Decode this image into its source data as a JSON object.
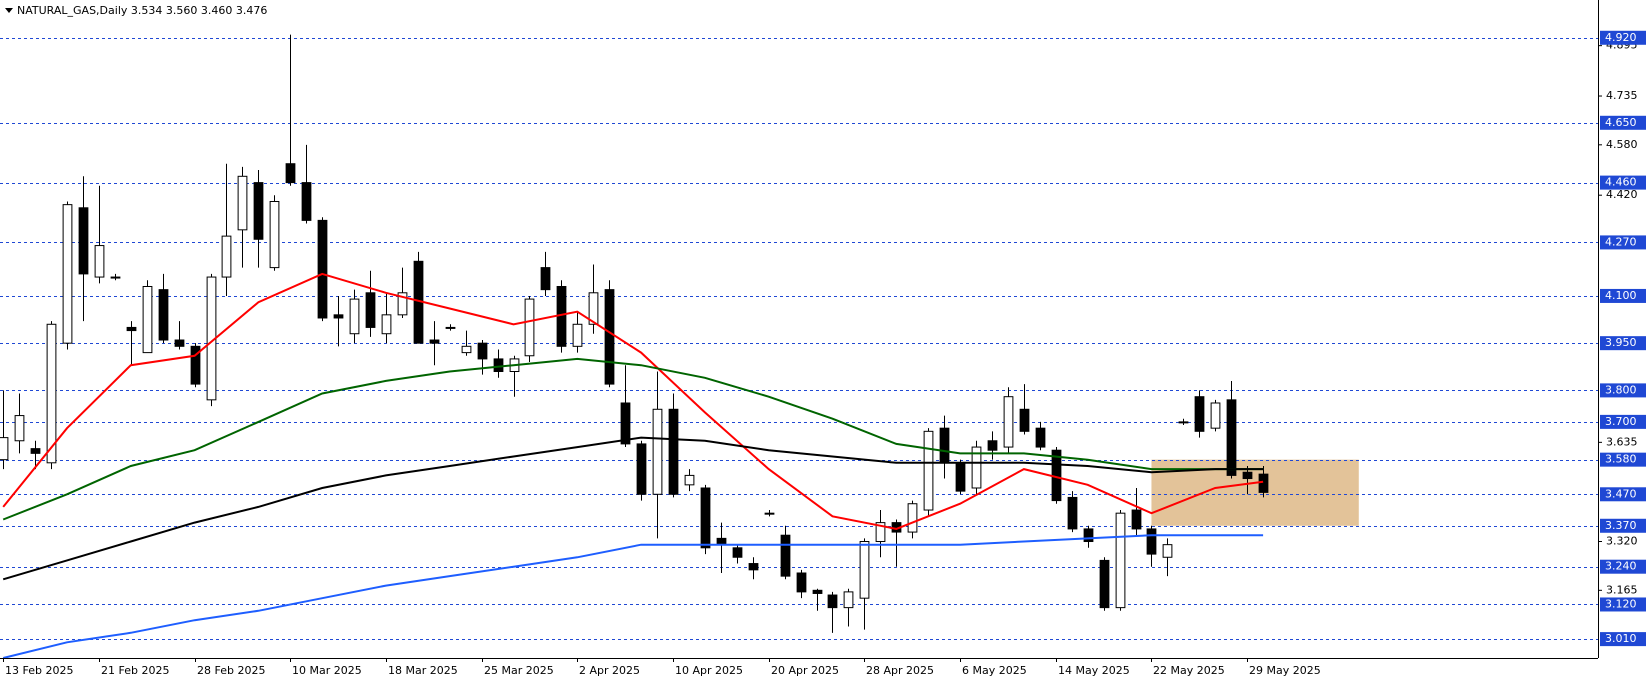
{
  "chart_data": {
    "type": "candlestick",
    "title": "NATURAL_GAS,Daily  3.534 3.560 3.460 3.476",
    "categories": [
      "13 Feb 2025",
      null,
      null,
      null,
      null,
      null,
      "21 Feb 2025",
      null,
      null,
      null,
      null,
      null,
      "28 Feb 2025",
      null,
      null,
      null,
      null,
      null,
      "10 Mar 2025",
      null,
      null,
      null,
      null,
      null,
      "18 Mar 2025",
      null,
      null,
      null,
      null,
      null,
      "25 Mar 2025",
      null,
      null,
      null,
      null,
      null,
      "2 Apr 2025",
      null,
      null,
      null,
      null,
      null,
      "10 Apr 2025",
      null,
      null,
      null,
      null,
      null,
      "20 Apr 2025",
      null,
      null,
      null,
      null,
      null,
      "28 Apr 2025",
      null,
      null,
      null,
      null,
      null,
      "6 May 2025",
      null,
      null,
      null,
      null,
      null,
      "14 May 2025",
      null,
      null,
      null,
      null,
      null,
      "22 May 2025",
      null,
      null,
      null,
      null,
      null,
      "29 May 2025",
      null
    ],
    "open": [
      3.58,
      3.64,
      3.615,
      3.57,
      3.95,
      4.38,
      4.16,
      4.16,
      4.0,
      3.92,
      4.12,
      3.96,
      3.94,
      3.77,
      4.16,
      4.31,
      4.46,
      4.19,
      4.52,
      4.46,
      4.34,
      4.04,
      3.98,
      4.11,
      3.98,
      4.04,
      4.21,
      3.96,
      4.0,
      3.92,
      3.95,
      3.9,
      3.86,
      3.91,
      4.19,
      4.13,
      3.94,
      4.01,
      4.12,
      3.76,
      3.63,
      3.47,
      3.74,
      3.5,
      3.49,
      3.33,
      3.3,
      3.25,
      3.41,
      3.34,
      3.22,
      3.165,
      3.15,
      3.11,
      3.14,
      3.32,
      3.38,
      3.35,
      3.42,
      3.68,
      3.57,
      3.49,
      3.64,
      3.62,
      3.74,
      3.68,
      3.61,
      3.46,
      3.36,
      3.26,
      3.11,
      3.42,
      3.36,
      3.27,
      3.7,
      3.78,
      3.68,
      3.77,
      3.54,
      3.534
    ],
    "high": [
      3.8,
      3.79,
      3.64,
      4.02,
      4.4,
      4.48,
      4.45,
      4.17,
      4.02,
      4.15,
      4.17,
      4.02,
      3.95,
      4.17,
      4.52,
      4.51,
      4.5,
      4.42,
      4.93,
      4.58,
      4.35,
      4.1,
      4.12,
      4.18,
      4.11,
      4.19,
      4.24,
      4.02,
      4.01,
      3.99,
      3.96,
      3.93,
      3.91,
      4.1,
      4.24,
      4.15,
      4.05,
      4.2,
      4.15,
      3.88,
      3.64,
      3.86,
      3.79,
      3.55,
      3.5,
      3.38,
      3.31,
      3.27,
      3.42,
      3.37,
      3.23,
      3.17,
      3.16,
      3.17,
      3.33,
      3.42,
      3.39,
      3.45,
      3.68,
      3.72,
      3.58,
      3.64,
      3.67,
      3.81,
      3.82,
      3.7,
      3.62,
      3.48,
      3.37,
      3.27,
      3.42,
      3.49,
      3.37,
      3.33,
      3.71,
      3.8,
      3.77,
      3.83,
      3.56,
      3.56
    ],
    "low": [
      3.55,
      3.6,
      3.55,
      3.55,
      3.93,
      4.02,
      4.14,
      4.15,
      3.88,
      3.92,
      3.95,
      3.93,
      3.81,
      3.75,
      4.1,
      4.19,
      4.19,
      4.18,
      4.45,
      4.33,
      4.02,
      3.94,
      3.95,
      3.97,
      3.95,
      4.03,
      3.95,
      3.88,
      3.99,
      3.91,
      3.85,
      3.84,
      3.78,
      3.89,
      4.1,
      3.92,
      3.92,
      3.98,
      3.81,
      3.62,
      3.45,
      3.33,
      3.46,
      3.48,
      3.28,
      3.22,
      3.25,
      3.2,
      3.4,
      3.2,
      3.14,
      3.1,
      3.03,
      3.05,
      3.04,
      3.27,
      3.24,
      3.33,
      3.4,
      3.52,
      3.47,
      3.47,
      3.58,
      3.6,
      3.66,
      3.61,
      3.44,
      3.35,
      3.3,
      3.1,
      3.1,
      3.34,
      3.24,
      3.21,
      3.69,
      3.65,
      3.67,
      3.52,
      3.47,
      3.46
    ],
    "close": [
      3.65,
      3.72,
      3.6,
      4.01,
      4.39,
      4.17,
      4.26,
      4.16,
      3.99,
      4.13,
      3.96,
      3.94,
      3.82,
      4.16,
      4.29,
      4.48,
      4.28,
      4.4,
      4.46,
      4.34,
      4.03,
      4.03,
      4.09,
      4.0,
      4.04,
      4.11,
      3.95,
      3.95,
      4.0,
      3.94,
      3.9,
      3.86,
      3.9,
      4.09,
      4.12,
      3.94,
      4.01,
      4.11,
      3.82,
      3.63,
      3.47,
      3.74,
      3.47,
      3.53,
      3.3,
      3.31,
      3.27,
      3.23,
      3.41,
      3.21,
      3.16,
      3.155,
      3.11,
      3.16,
      3.32,
      3.38,
      3.35,
      3.44,
      3.67,
      3.57,
      3.48,
      3.62,
      3.61,
      3.78,
      3.67,
      3.62,
      3.45,
      3.36,
      3.32,
      3.11,
      3.41,
      3.36,
      3.28,
      3.31,
      3.7,
      3.67,
      3.76,
      3.53,
      3.52,
      3.476
    ],
    "series": [
      {
        "color": "#ff0000",
        "x": [
          0,
          4,
          8,
          12,
          16,
          20,
          24,
          28,
          32,
          36,
          40,
          44,
          48,
          52,
          56,
          60,
          64,
          68,
          72,
          76,
          79
        ],
        "values": [
          3.43,
          3.68,
          3.88,
          3.91,
          4.08,
          4.17,
          4.11,
          4.06,
          4.01,
          4.05,
          3.92,
          3.73,
          3.55,
          3.4,
          3.36,
          3.44,
          3.55,
          3.5,
          3.41,
          3.49,
          3.51
        ]
      },
      {
        "color": "#006400",
        "x": [
          0,
          4,
          8,
          12,
          16,
          20,
          24,
          28,
          32,
          36,
          40,
          44,
          48,
          52,
          56,
          60,
          64,
          68,
          72,
          76,
          79
        ],
        "values": [
          3.39,
          3.47,
          3.56,
          3.61,
          3.7,
          3.79,
          3.83,
          3.86,
          3.88,
          3.9,
          3.88,
          3.84,
          3.78,
          3.71,
          3.63,
          3.6,
          3.6,
          3.58,
          3.55,
          3.55,
          3.55
        ]
      },
      {
        "color": "#000000",
        "x": [
          0,
          4,
          8,
          12,
          16,
          20,
          24,
          28,
          32,
          36,
          40,
          44,
          48,
          52,
          56,
          60,
          64,
          68,
          72,
          76,
          79
        ],
        "values": [
          3.2,
          3.26,
          3.32,
          3.38,
          3.43,
          3.49,
          3.53,
          3.56,
          3.59,
          3.62,
          3.65,
          3.64,
          3.61,
          3.59,
          3.57,
          3.57,
          3.57,
          3.56,
          3.54,
          3.55,
          3.55
        ]
      },
      {
        "color": "#1e5eff",
        "x": [
          0,
          4,
          8,
          12,
          16,
          20,
          24,
          28,
          32,
          36,
          40,
          44,
          48,
          52,
          56,
          60,
          64,
          68,
          72,
          76,
          79
        ],
        "values": [
          2.95,
          3.0,
          3.03,
          3.07,
          3.1,
          3.14,
          3.18,
          3.21,
          3.24,
          3.27,
          3.31,
          3.31,
          3.31,
          3.31,
          3.31,
          3.31,
          3.32,
          3.33,
          3.34,
          3.34,
          3.34
        ]
      }
    ],
    "zone": {
      "xlim": [
        72,
        85
      ],
      "ylim": [
        3.37,
        3.58
      ],
      "color": "#deb887"
    },
    "levels": [
      {
        "value": 4.92,
        "label": "4.920"
      },
      {
        "value": 4.65,
        "label": "4.650"
      },
      {
        "value": 4.46,
        "label": "4.460"
      },
      {
        "value": 4.27,
        "label": "4.270"
      },
      {
        "value": 4.1,
        "label": "4.100"
      },
      {
        "value": 3.95,
        "label": "3.950"
      },
      {
        "value": 3.8,
        "label": "3.800"
      },
      {
        "value": 3.7,
        "label": "3.700"
      },
      {
        "value": 3.58,
        "label": "3.580"
      },
      {
        "value": 3.47,
        "label": "3.470"
      },
      {
        "value": 3.37,
        "label": "3.370"
      },
      {
        "value": 3.24,
        "label": "3.240"
      },
      {
        "value": 3.12,
        "label": "3.120"
      },
      {
        "value": 3.01,
        "label": "3.010"
      }
    ],
    "level_color": "#1f48d4",
    "xlim": [
      -0.2,
      100
    ],
    "ylim": [
      2.95,
      5.04
    ],
    "yticks": [
      4.895,
      4.735,
      {
        "value": 4.58,
        "label": "4.580"
      },
      {
        "value": 4.42,
        "label": "4.420"
      },
      3.635,
      {
        "value": 3.32,
        "label": "3.320"
      },
      3.165
    ]
  }
}
